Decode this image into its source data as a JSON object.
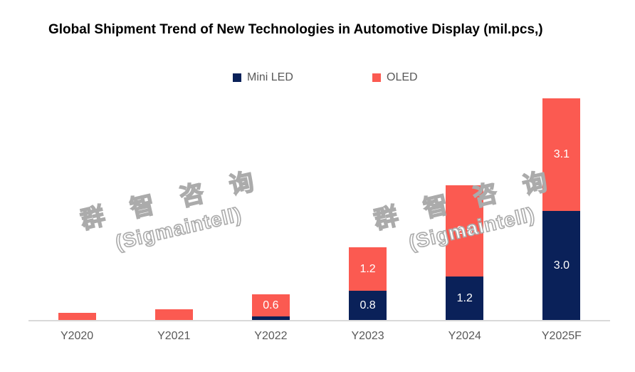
{
  "title": "Global Shipment Trend of New Technologies in Automotive Display (mil.pcs,)",
  "legend": [
    {
      "label": "Mini LED",
      "color": "#0A2159"
    },
    {
      "label": "OLED",
      "color": "#FB5A51"
    }
  ],
  "watermark": {
    "line1": "群 智 咨 询",
    "line2": "(Sigmaintell)"
  },
  "colors": {
    "axis_line": "#D9D9D9",
    "axis_label_text": "#595959",
    "value_label_text": "#FFFFFF",
    "title_text": "#000000"
  },
  "chart_data": {
    "type": "bar",
    "stacked": true,
    "title": "Global Shipment Trend of New Technologies in Automotive Display (mil.pcs,)",
    "categories": [
      "Y2020",
      "Y2021",
      "Y2022",
      "Y2023",
      "Y2024",
      "Y2025F"
    ],
    "series": [
      {
        "name": "Mini LED",
        "color": "#0A2159",
        "values": [
          0,
          0,
          0.1,
          0.8,
          1.2,
          3.0
        ],
        "data_labels": [
          "",
          "",
          "",
          "0.8",
          "1.2",
          "3.0"
        ]
      },
      {
        "name": "OLED",
        "color": "#FB5A51",
        "values": [
          0.2,
          0.3,
          0.6,
          1.2,
          2.5,
          3.1
        ],
        "data_labels": [
          "",
          "",
          "0.6",
          "1.2",
          "2.5",
          "3.1"
        ]
      }
    ],
    "xlabel": "",
    "ylabel": "",
    "ylim": [
      0,
      6.5
    ],
    "grid": false,
    "legend_position": "top-center",
    "bar_value_labels_inside": true
  }
}
